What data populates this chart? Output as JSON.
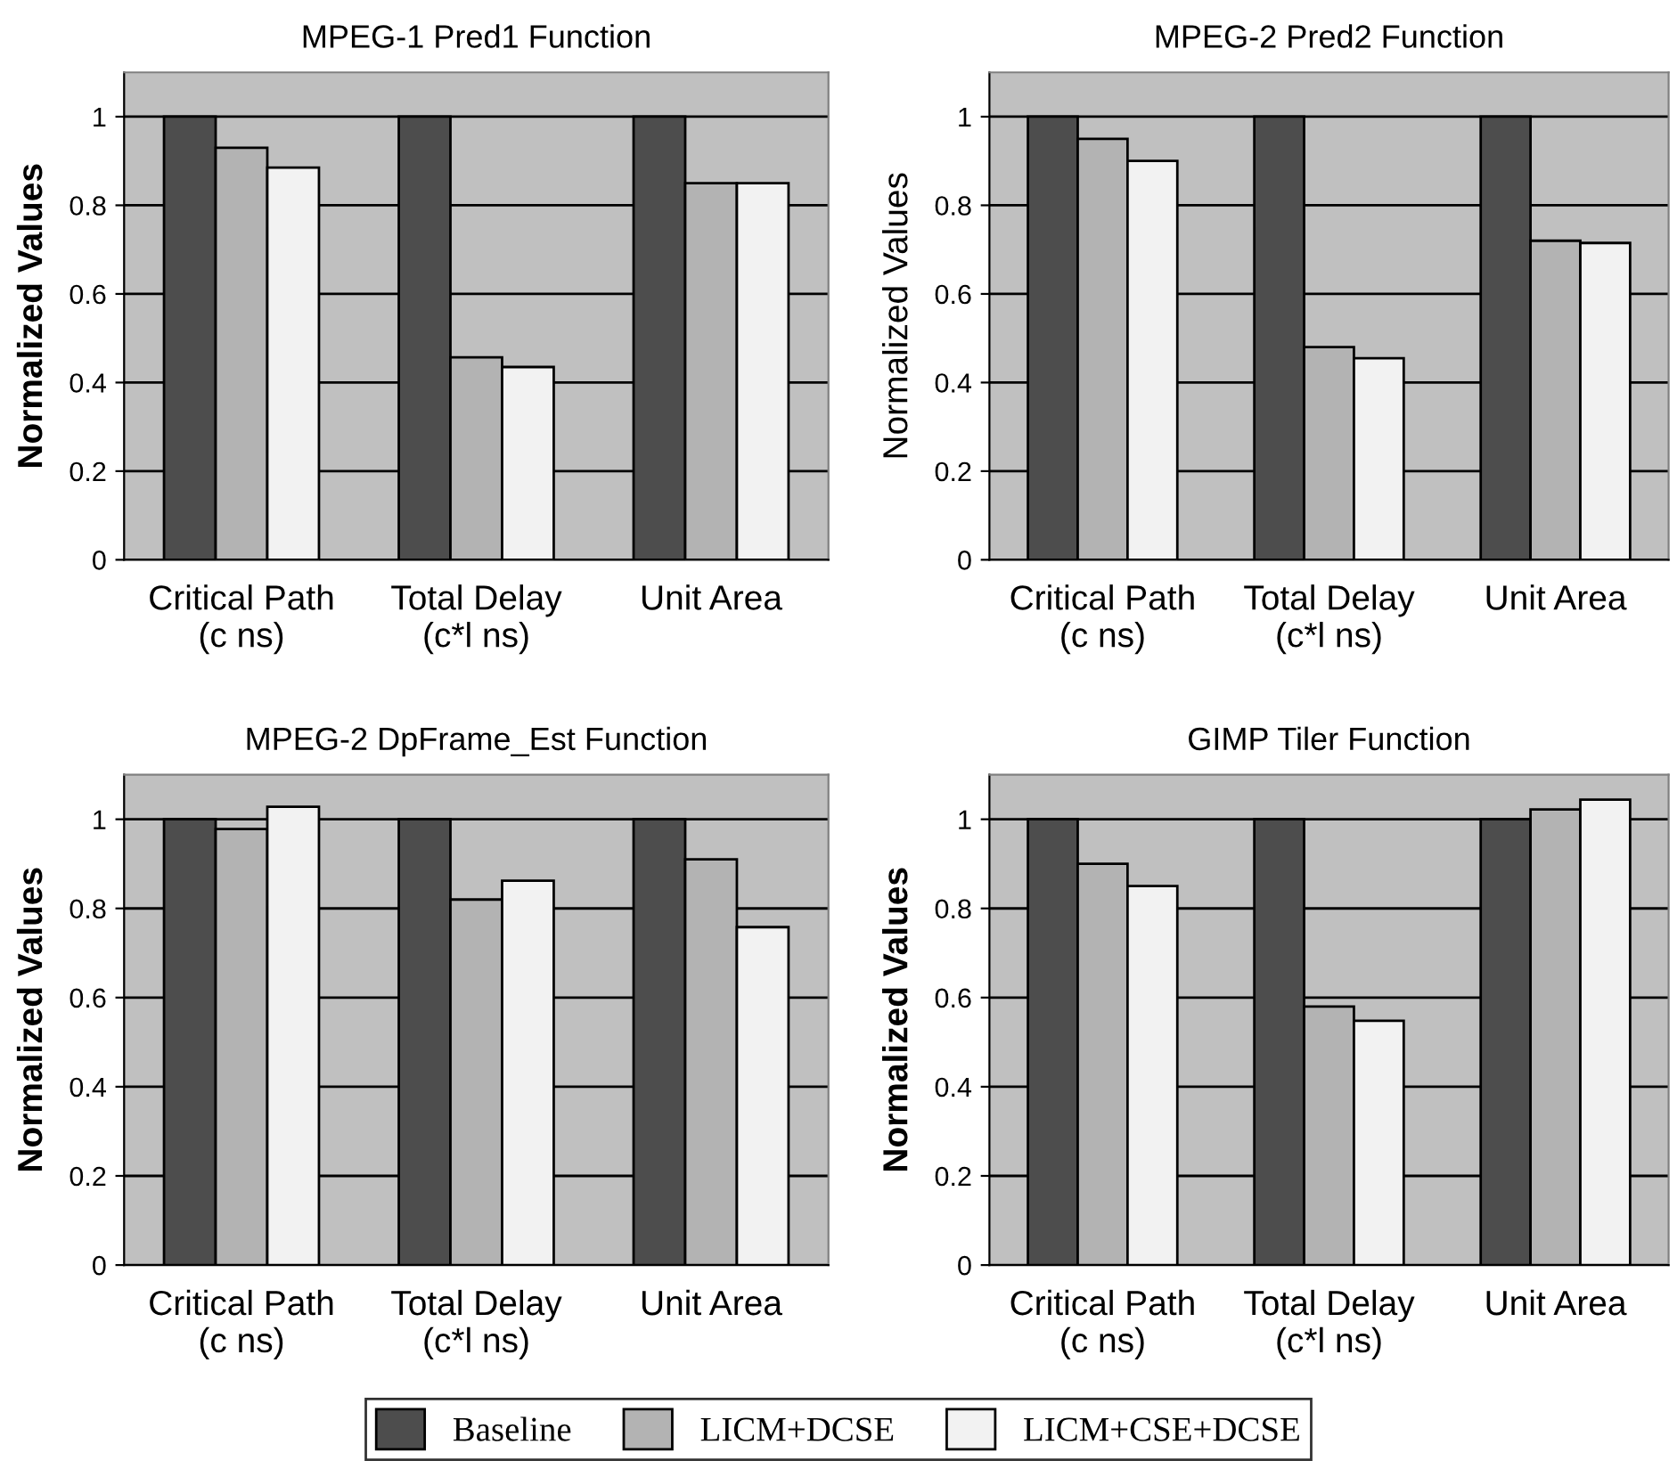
{
  "chart_data": [
    {
      "type": "bar",
      "title": "MPEG-1 Pred1 Function",
      "ylabel": "Normalized Values",
      "categories": [
        "Critical Path\n(c ns)",
        "Total Delay\n(c*l ns)",
        "Unit Area"
      ],
      "ylim": [
        0,
        1.1
      ],
      "yticks": [
        0,
        0.2,
        0.4,
        0.6,
        0.8,
        1
      ],
      "grid": "y",
      "series": [
        {
          "color": "#4d4d4d",
          "values": [
            1,
            1,
            1
          ]
        },
        {
          "color": "#b3b3b3",
          "values": [
            0.93,
            0.457,
            0.85
          ]
        },
        {
          "color": "#f2f2f2",
          "values": [
            0.885,
            0.435,
            0.85
          ]
        }
      ]
    },
    {
      "type": "bar",
      "title": "MPEG-2 Pred2 Function",
      "ylabel": "Normalized Values",
      "categories": [
        "Critical Path\n(c ns)",
        "Total Delay\n(c*l ns)",
        "Unit Area"
      ],
      "ylim": [
        0,
        1.1
      ],
      "yticks": [
        0,
        0.2,
        0.4,
        0.6,
        0.8,
        1
      ],
      "grid": "y",
      "series": [
        {
          "color": "#4d4d4d",
          "values": [
            1,
            1,
            1
          ]
        },
        {
          "color": "#b3b3b3",
          "values": [
            0.95,
            0.48,
            0.72
          ]
        },
        {
          "color": "#f2f2f2",
          "values": [
            0.9,
            0.455,
            0.715
          ]
        }
      ]
    },
    {
      "type": "bar",
      "title": "MPEG-2 DpFrame_Est Function",
      "ylabel": "Normalized Values",
      "categories": [
        "Critical Path\n(c ns)",
        "Total Delay\n(c*l ns)",
        "Unit Area"
      ],
      "ylim": [
        0,
        1.1
      ],
      "yticks": [
        0,
        0.2,
        0.4,
        0.6,
        0.8,
        1
      ],
      "grid": "y",
      "series": [
        {
          "color": "#4d4d4d",
          "values": [
            1,
            1,
            1
          ]
        },
        {
          "color": "#b3b3b3",
          "values": [
            0.978,
            0.82,
            0.91
          ]
        },
        {
          "color": "#f2f2f2",
          "values": [
            1.028,
            0.862,
            0.758
          ]
        }
      ]
    },
    {
      "type": "bar",
      "title": "GIMP Tiler Function",
      "ylabel": "Normalized Values",
      "categories": [
        "Critical Path\n(c ns)",
        "Total Delay\n(c*l ns)",
        "Unit Area"
      ],
      "ylim": [
        0,
        1.1
      ],
      "yticks": [
        0,
        0.2,
        0.4,
        0.6,
        0.8,
        1
      ],
      "grid": "y",
      "legend": "bottom",
      "series": [
        {
          "name": "Baseline",
          "color": "#4d4d4d",
          "values": [
            1,
            1,
            1
          ]
        },
        {
          "name": "LICM+DCSE",
          "color": "#b3b3b3",
          "values": [
            0.9,
            0.58,
            1.022
          ]
        },
        {
          "name": "LICM+CSE+DCSE",
          "color": "#f2f2f2",
          "values": [
            0.85,
            0.548,
            1.044
          ]
        }
      ]
    }
  ]
}
